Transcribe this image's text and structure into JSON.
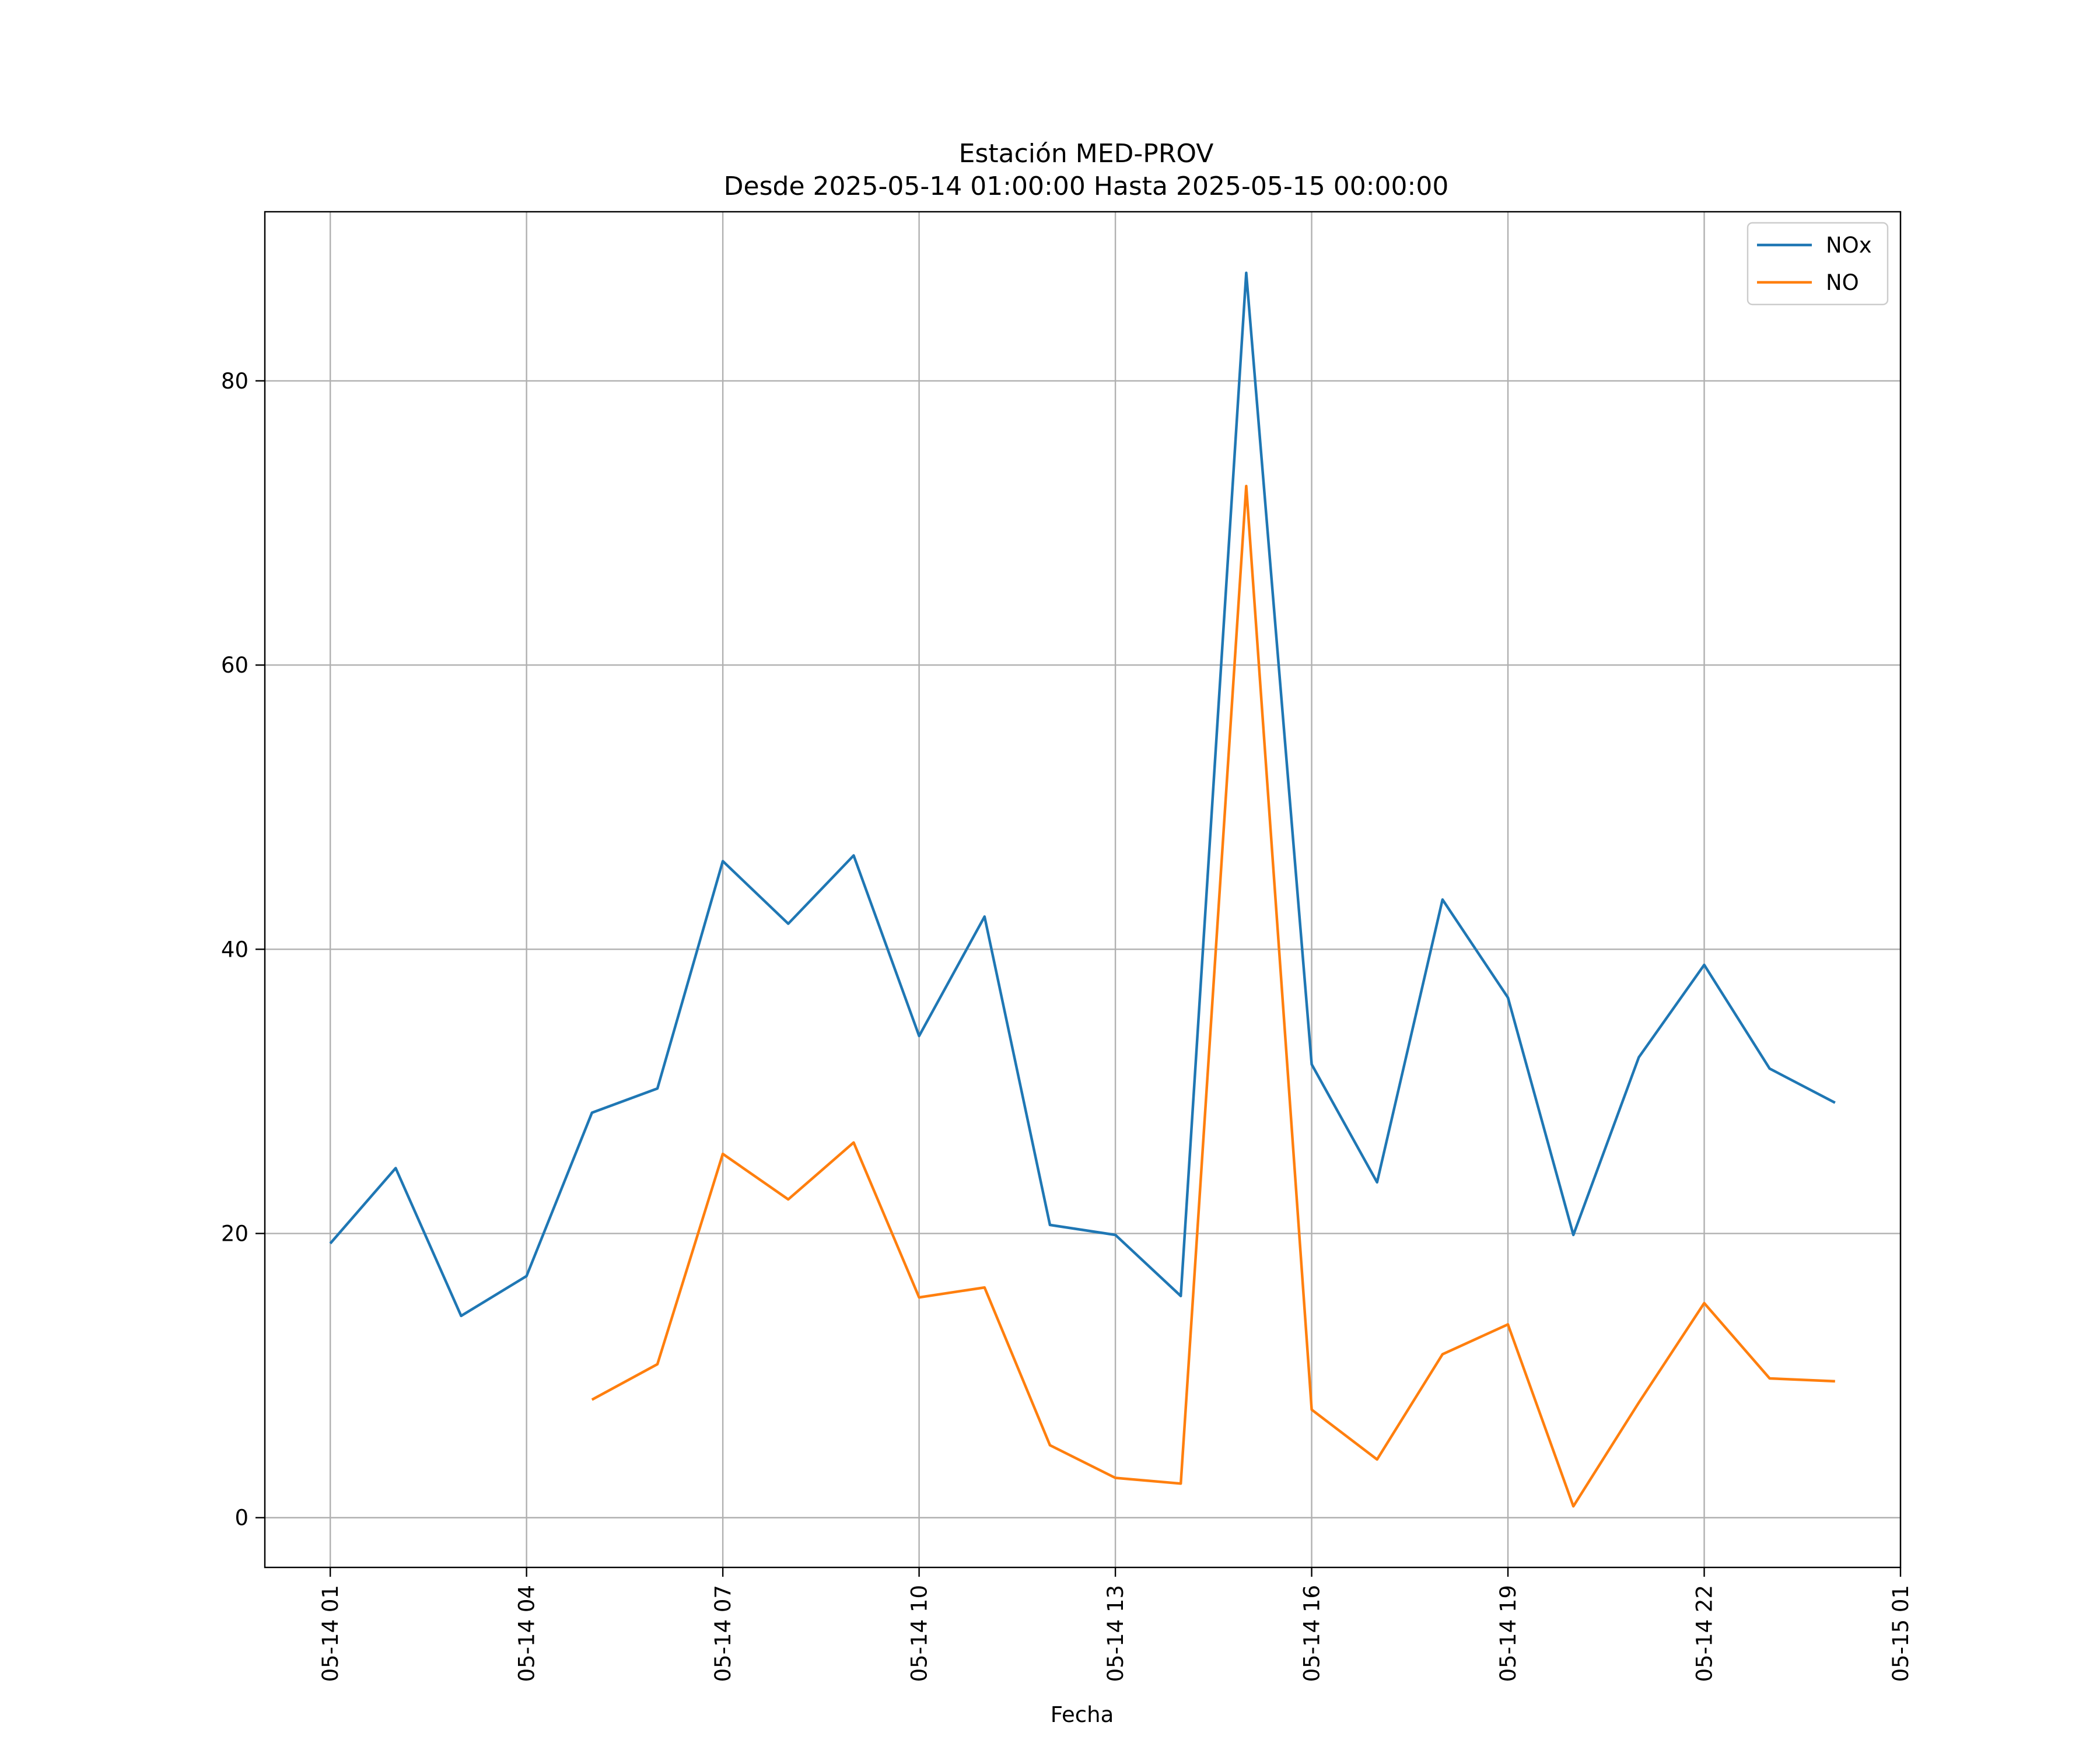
{
  "chart_data": {
    "type": "line",
    "title": "Estación MED-PROV",
    "subtitle": "Desde 2025-05-14 01:00:00 Hasta 2025-05-15 00:00:00",
    "xlabel": "Fecha",
    "ylabel": "",
    "x": [
      "2025-05-14 01:00",
      "2025-05-14 02:00",
      "2025-05-14 03:00",
      "2025-05-14 04:00",
      "2025-05-14 05:00",
      "2025-05-14 06:00",
      "2025-05-14 07:00",
      "2025-05-14 08:00",
      "2025-05-14 09:00",
      "2025-05-14 10:00",
      "2025-05-14 11:00",
      "2025-05-14 12:00",
      "2025-05-14 13:00",
      "2025-05-14 14:00",
      "2025-05-14 15:00",
      "2025-05-14 16:00",
      "2025-05-14 17:00",
      "2025-05-14 18:00",
      "2025-05-14 19:00",
      "2025-05-14 20:00",
      "2025-05-14 21:00",
      "2025-05-14 22:00",
      "2025-05-14 23:00",
      "2025-05-15 00:00"
    ],
    "x_ticks": [
      "05-14 01",
      "05-14 04",
      "05-14 07",
      "05-14 10",
      "05-14 13",
      "05-14 16",
      "05-14 19",
      "05-14 22",
      "05-15 01"
    ],
    "xlim": [
      "2025-05-14 00:00",
      "2025-05-15 01:00"
    ],
    "y_ticks": [
      0,
      20,
      40,
      60,
      80
    ],
    "ylim": [
      -3.5,
      91.9
    ],
    "grid": true,
    "legend_position": "top-right",
    "series": [
      {
        "name": "NOx",
        "color": "#1f77b4",
        "values": [
          19.3,
          24.6,
          14.2,
          17.0,
          28.5,
          30.2,
          46.2,
          41.8,
          46.6,
          33.9,
          42.3,
          20.6,
          19.9,
          15.6,
          87.6,
          31.9,
          23.6,
          43.5,
          36.6,
          19.9,
          32.4,
          38.9,
          31.6,
          29.2
        ]
      },
      {
        "name": "NO",
        "color": "#ff7f0e",
        "values": [
          null,
          null,
          null,
          null,
          8.3,
          10.8,
          25.6,
          22.4,
          26.4,
          15.5,
          16.2,
          5.1,
          2.8,
          2.4,
          72.6,
          7.6,
          4.1,
          11.5,
          13.6,
          0.8,
          8.1,
          15.1,
          9.8,
          9.6
        ]
      }
    ]
  }
}
